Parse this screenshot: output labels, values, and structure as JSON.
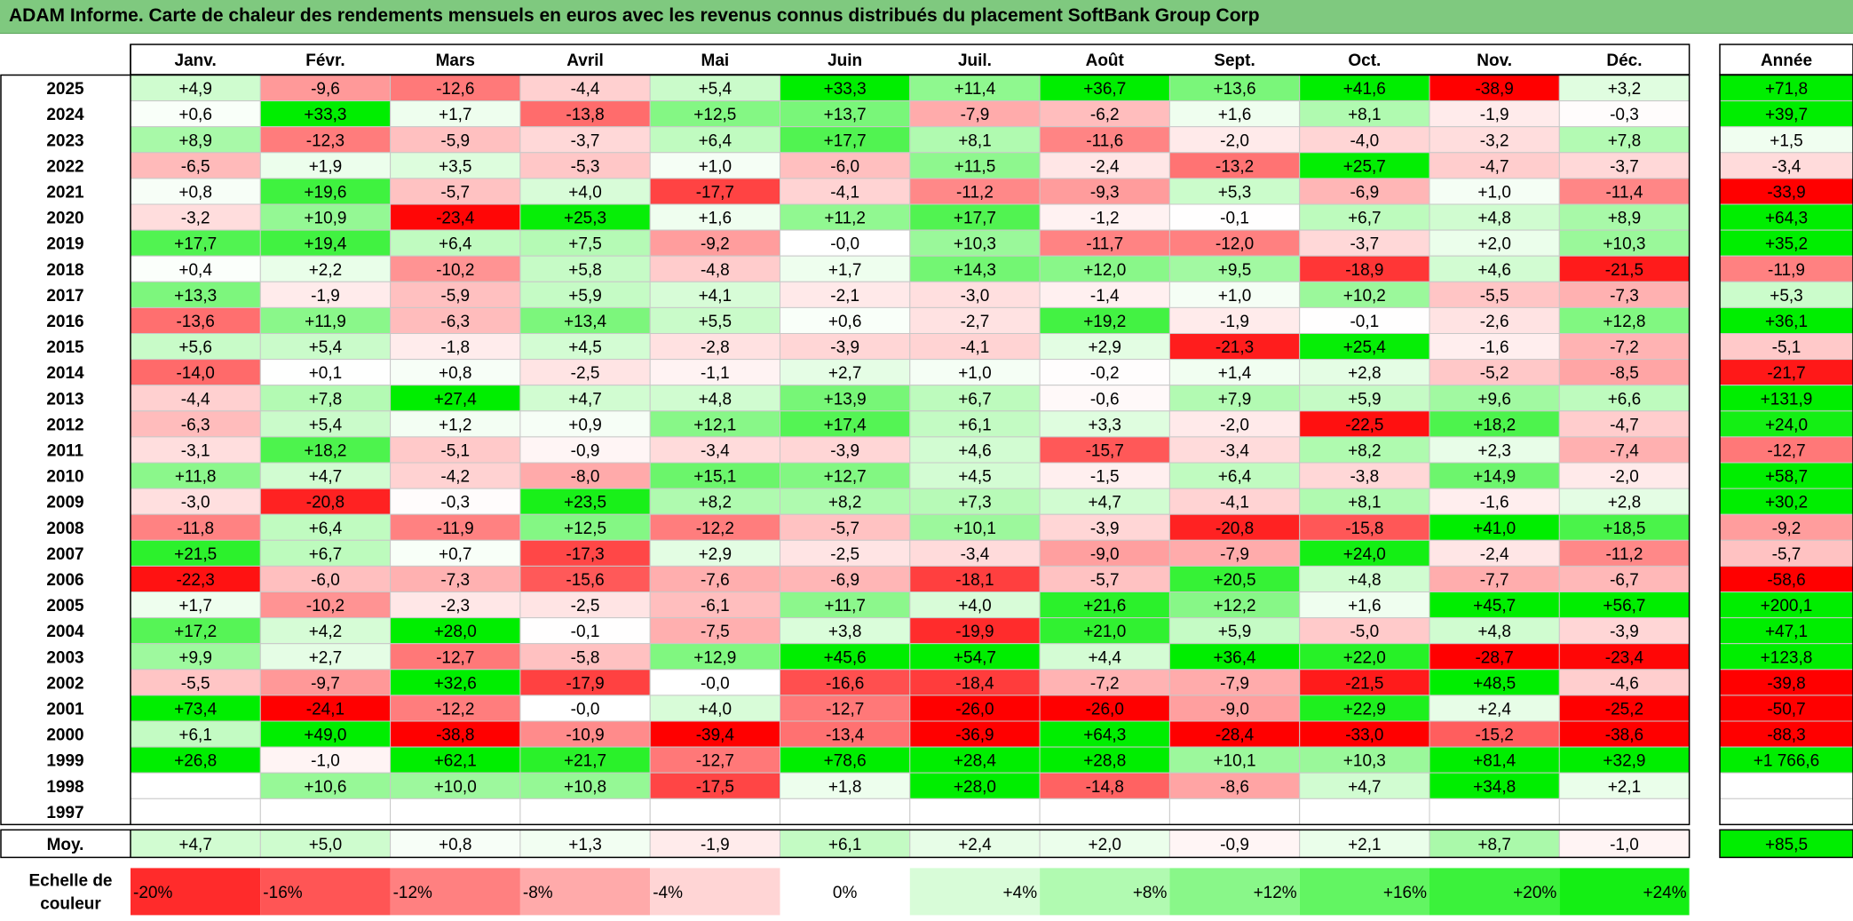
{
  "title": "ADAM Informe. Carte de chaleur des rendements mensuels en euros avec les revenus connus distribués du placement SoftBank Group Corp",
  "chart_data": {
    "type": "heatmap",
    "columns": [
      "Janv.",
      "Févr.",
      "Mars",
      "Avril",
      "Mai",
      "Juin",
      "Juil.",
      "Août",
      "Sept.",
      "Oct.",
      "Nov.",
      "Déc."
    ],
    "annual_header": "Année",
    "rows": [
      {
        "year": "2025",
        "values": [
          "+4,9",
          "-9,6",
          "-12,6",
          "-4,4",
          "+5,4",
          "+33,3",
          "+11,4",
          "+36,7",
          "+13,6",
          "+41,6",
          "-38,9",
          "+3,2"
        ],
        "annual": "+71,8"
      },
      {
        "year": "2024",
        "values": [
          "+0,6",
          "+33,3",
          "+1,7",
          "-13,8",
          "+12,5",
          "+13,7",
          "-7,9",
          "-6,2",
          "+1,6",
          "+8,1",
          "-1,9",
          "-0,3"
        ],
        "annual": "+39,7"
      },
      {
        "year": "2023",
        "values": [
          "+8,9",
          "-12,3",
          "-5,9",
          "-3,7",
          "+6,4",
          "+17,7",
          "+8,1",
          "-11,6",
          "-2,0",
          "-4,0",
          "-3,2",
          "+7,8"
        ],
        "annual": "+1,5"
      },
      {
        "year": "2022",
        "values": [
          "-6,5",
          "+1,9",
          "+3,5",
          "-5,3",
          "+1,0",
          "-6,0",
          "+11,5",
          "-2,4",
          "-13,2",
          "+25,7",
          "-4,7",
          "-3,7"
        ],
        "annual": "-3,4"
      },
      {
        "year": "2021",
        "values": [
          "+0,8",
          "+19,6",
          "-5,7",
          "+4,0",
          "-17,7",
          "-4,1",
          "-11,2",
          "-9,3",
          "+5,3",
          "-6,9",
          "+1,0",
          "-11,4"
        ],
        "annual": "-33,9"
      },
      {
        "year": "2020",
        "values": [
          "-3,2",
          "+10,9",
          "-23,4",
          "+25,3",
          "+1,6",
          "+11,2",
          "+17,7",
          "-1,2",
          "-0,1",
          "+6,7",
          "+4,8",
          "+8,9"
        ],
        "annual": "+64,3"
      },
      {
        "year": "2019",
        "values": [
          "+17,7",
          "+19,4",
          "+6,4",
          "+7,5",
          "-9,2",
          "-0,0",
          "+10,3",
          "-11,7",
          "-12,0",
          "-3,7",
          "+2,0",
          "+10,3"
        ],
        "annual": "+35,2"
      },
      {
        "year": "2018",
        "values": [
          "+0,4",
          "+2,2",
          "-10,2",
          "+5,8",
          "-4,8",
          "+1,7",
          "+14,3",
          "+12,0",
          "+9,5",
          "-18,9",
          "+4,6",
          "-21,5"
        ],
        "annual": "-11,9"
      },
      {
        "year": "2017",
        "values": [
          "+13,3",
          "-1,9",
          "-5,9",
          "+5,9",
          "+4,1",
          "-2,1",
          "-3,0",
          "-1,4",
          "+1,0",
          "+10,2",
          "-5,5",
          "-7,3"
        ],
        "annual": "+5,3"
      },
      {
        "year": "2016",
        "values": [
          "-13,6",
          "+11,9",
          "-6,3",
          "+13,4",
          "+5,5",
          "+0,6",
          "-2,7",
          "+19,2",
          "-1,9",
          "-0,1",
          "-2,6",
          "+12,8"
        ],
        "annual": "+36,1"
      },
      {
        "year": "2015",
        "values": [
          "+5,6",
          "+5,4",
          "-1,8",
          "+4,5",
          "-2,8",
          "-3,9",
          "-4,1",
          "+2,9",
          "-21,3",
          "+25,4",
          "-1,6",
          "-7,2"
        ],
        "annual": "-5,1"
      },
      {
        "year": "2014",
        "values": [
          "-14,0",
          "+0,1",
          "+0,8",
          "-2,5",
          "-1,1",
          "+2,7",
          "+1,0",
          "-0,2",
          "+1,4",
          "+2,8",
          "-5,2",
          "-8,5"
        ],
        "annual": "-21,7"
      },
      {
        "year": "2013",
        "values": [
          "-4,4",
          "+7,8",
          "+27,4",
          "+4,7",
          "+4,8",
          "+13,9",
          "+6,7",
          "-0,6",
          "+7,9",
          "+5,9",
          "+9,6",
          "+6,6"
        ],
        "annual": "+131,9"
      },
      {
        "year": "2012",
        "values": [
          "-6,3",
          "+5,4",
          "+1,2",
          "+0,9",
          "+12,1",
          "+17,4",
          "+6,1",
          "+3,3",
          "-2,0",
          "-22,5",
          "+18,2",
          "-4,7"
        ],
        "annual": "+24,0"
      },
      {
        "year": "2011",
        "values": [
          "-3,1",
          "+18,2",
          "-5,1",
          "-0,9",
          "-3,4",
          "-3,9",
          "+4,6",
          "-15,7",
          "-3,4",
          "+8,2",
          "+2,3",
          "-7,4"
        ],
        "annual": "-12,7"
      },
      {
        "year": "2010",
        "values": [
          "+11,8",
          "+4,7",
          "-4,2",
          "-8,0",
          "+15,1",
          "+12,7",
          "+4,5",
          "-1,5",
          "+6,4",
          "-3,8",
          "+14,9",
          "-2,0"
        ],
        "annual": "+58,7"
      },
      {
        "year": "2009",
        "values": [
          "-3,0",
          "-20,8",
          "-0,3",
          "+23,5",
          "+8,2",
          "+8,2",
          "+7,3",
          "+4,7",
          "-4,1",
          "+8,1",
          "-1,6",
          "+2,8"
        ],
        "annual": "+30,2"
      },
      {
        "year": "2008",
        "values": [
          "-11,8",
          "+6,4",
          "-11,9",
          "+12,5",
          "-12,2",
          "-5,7",
          "+10,1",
          "-3,9",
          "-20,8",
          "-15,8",
          "+41,0",
          "+18,5"
        ],
        "annual": "-9,2"
      },
      {
        "year": "2007",
        "values": [
          "+21,5",
          "+6,7",
          "+0,7",
          "-17,3",
          "+2,9",
          "-2,5",
          "-3,4",
          "-9,0",
          "-7,9",
          "+24,0",
          "-2,4",
          "-11,2"
        ],
        "annual": "-5,7"
      },
      {
        "year": "2006",
        "values": [
          "-22,3",
          "-6,0",
          "-7,3",
          "-15,6",
          "-7,6",
          "-6,9",
          "-18,1",
          "-5,7",
          "+20,5",
          "+4,8",
          "-7,7",
          "-6,7"
        ],
        "annual": "-58,6"
      },
      {
        "year": "2005",
        "values": [
          "+1,7",
          "-10,2",
          "-2,3",
          "-2,5",
          "-6,1",
          "+11,7",
          "+4,0",
          "+21,6",
          "+12,2",
          "+1,6",
          "+45,7",
          "+56,7"
        ],
        "annual": "+200,1"
      },
      {
        "year": "2004",
        "values": [
          "+17,2",
          "+4,2",
          "+28,0",
          "-0,1",
          "-7,5",
          "+3,8",
          "-19,9",
          "+21,0",
          "+5,9",
          "-5,0",
          "+4,8",
          "-3,9"
        ],
        "annual": "+47,1"
      },
      {
        "year": "2003",
        "values": [
          "+9,9",
          "+2,7",
          "-12,7",
          "-5,8",
          "+12,9",
          "+45,6",
          "+54,7",
          "+4,4",
          "+36,4",
          "+22,0",
          "-28,7",
          "-23,4"
        ],
        "annual": "+123,8"
      },
      {
        "year": "2002",
        "values": [
          "-5,5",
          "-9,7",
          "+32,6",
          "-17,9",
          "-0,0",
          "-16,6",
          "-18,4",
          "-7,2",
          "-7,9",
          "-21,5",
          "+48,5",
          "-4,6"
        ],
        "annual": "-39,8"
      },
      {
        "year": "2001",
        "values": [
          "+73,4",
          "-24,1",
          "-12,2",
          "-0,0",
          "+4,0",
          "-12,7",
          "-26,0",
          "-26,0",
          "-9,0",
          "+22,9",
          "+2,4",
          "-25,2"
        ],
        "annual": "-50,7"
      },
      {
        "year": "2000",
        "values": [
          "+6,1",
          "+49,0",
          "-38,8",
          "-10,9",
          "-39,4",
          "-13,4",
          "-36,9",
          "+64,3",
          "-28,4",
          "-33,0",
          "-15,2",
          "-38,6"
        ],
        "annual": "-88,3"
      },
      {
        "year": "1999",
        "values": [
          "+26,8",
          "-1,0",
          "+62,1",
          "+21,7",
          "-12,7",
          "+78,6",
          "+28,4",
          "+28,8",
          "+10,1",
          "+10,3",
          "+81,4",
          "+32,9"
        ],
        "annual": "+1 766,6"
      },
      {
        "year": "1998",
        "values": [
          "",
          "+10,6",
          "+10,0",
          "+10,8",
          "-17,5",
          "+1,8",
          "+28,0",
          "-14,8",
          "-8,6",
          "+4,7",
          "+34,8",
          "+2,1"
        ],
        "annual": ""
      },
      {
        "year": "1997",
        "values": [
          "",
          "",
          "",
          "",
          "",
          "",
          "",
          "",
          "",
          "",
          "",
          ""
        ],
        "annual": ""
      }
    ],
    "average": {
      "label": "Moy.",
      "values": [
        "+4,7",
        "+5,0",
        "+0,8",
        "+1,3",
        "-1,9",
        "+6,1",
        "+2,4",
        "+2,0",
        "-0,9",
        "+2,1",
        "+8,7",
        "-1,0"
      ],
      "annual": "+85,5"
    },
    "scale": {
      "label_line1": "Echelle de",
      "label_line2": "couleur",
      "steps": [
        {
          "label": "-20%",
          "value": -20
        },
        {
          "label": "-16%",
          "value": -16
        },
        {
          "label": "-12%",
          "value": -12
        },
        {
          "label": "-8%",
          "value": -8
        },
        {
          "label": "-4%",
          "value": -4
        },
        {
          "label": "0%",
          "value": 0
        },
        {
          "label": "+4%",
          "value": 4
        },
        {
          "label": "+8%",
          "value": 8
        },
        {
          "label": "+12%",
          "value": 12
        },
        {
          "label": "+16%",
          "value": 16
        },
        {
          "label": "+20%",
          "value": 20
        },
        {
          "label": "+24%",
          "value": 24
        }
      ]
    },
    "colors": {
      "negative_max": "#ff0000",
      "neutral": "#ffffff",
      "positive_max": "#00ee00",
      "title_band": "#7fc97f"
    }
  }
}
